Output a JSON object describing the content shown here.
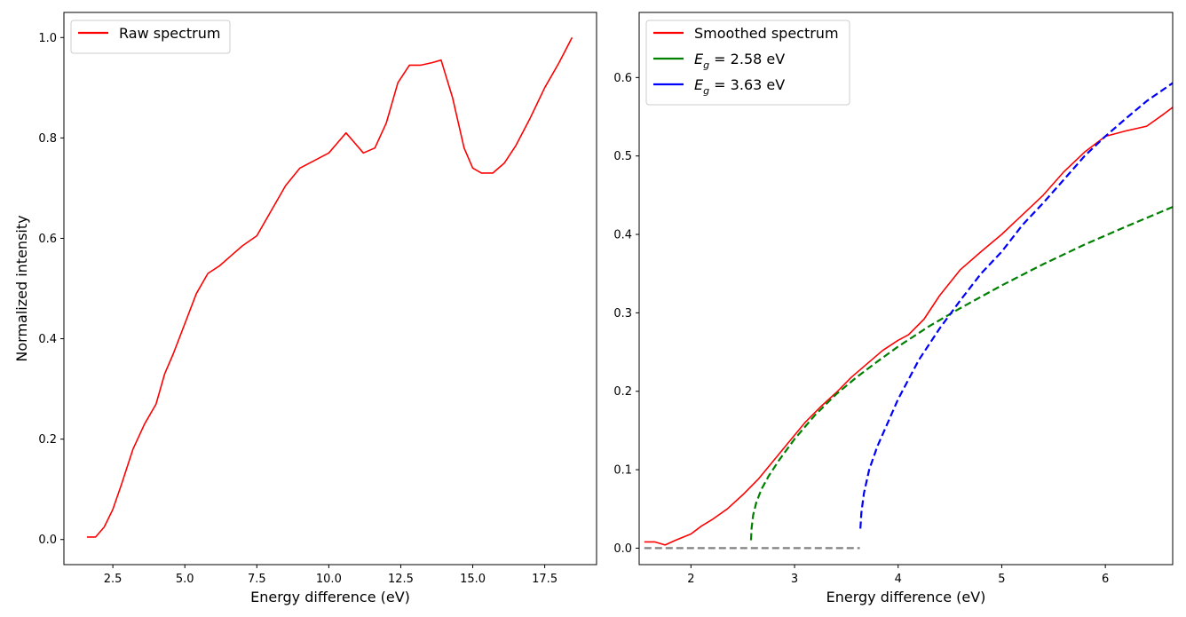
{
  "chart_data": [
    {
      "type": "line",
      "xlabel": "Energy difference (eV)",
      "ylabel": "Normalized intensity",
      "xlim": [
        0.8,
        19.3
      ],
      "ylim": [
        -0.05,
        1.05
      ],
      "xticks": [
        2.5,
        5.0,
        7.5,
        10.0,
        12.5,
        15.0,
        17.5
      ],
      "xtick_labels": [
        "2.5",
        "5.0",
        "7.5",
        "10.0",
        "12.5",
        "15.0",
        "17.5"
      ],
      "yticks": [
        0.0,
        0.2,
        0.4,
        0.6,
        0.8,
        1.0
      ],
      "ytick_labels": [
        "0.0",
        "0.2",
        "0.4",
        "0.6",
        "0.8",
        "1.0"
      ],
      "grid": false,
      "legend_position": "top-left",
      "series": [
        {
          "name": "Raw spectrum",
          "color": "#ff0000",
          "style": "solid",
          "in_legend": true,
          "x": [
            1.6,
            1.9,
            2.2,
            2.5,
            2.8,
            3.2,
            3.6,
            4.0,
            4.3,
            4.6,
            5.0,
            5.4,
            5.8,
            6.2,
            6.6,
            7.0,
            7.5,
            8.0,
            8.5,
            9.0,
            9.5,
            10.0,
            10.3,
            10.6,
            10.9,
            11.2,
            11.6,
            12.0,
            12.4,
            12.8,
            13.2,
            13.6,
            13.9,
            14.3,
            14.7,
            15.0,
            15.3,
            15.7,
            16.1,
            16.5,
            17.0,
            17.5,
            18.0,
            18.45
          ],
          "y": [
            0.005,
            0.005,
            0.025,
            0.06,
            0.11,
            0.18,
            0.23,
            0.27,
            0.33,
            0.37,
            0.43,
            0.49,
            0.53,
            0.545,
            0.565,
            0.585,
            0.605,
            0.655,
            0.705,
            0.74,
            0.755,
            0.77,
            0.79,
            0.81,
            0.79,
            0.77,
            0.78,
            0.83,
            0.91,
            0.945,
            0.945,
            0.95,
            0.955,
            0.88,
            0.78,
            0.74,
            0.73,
            0.73,
            0.75,
            0.785,
            0.84,
            0.9,
            0.95,
            1.0
          ]
        }
      ]
    },
    {
      "type": "line",
      "xlabel": "Energy difference (eV)",
      "ylabel": "",
      "xlim": [
        1.5,
        6.65
      ],
      "ylim": [
        -0.021,
        0.683
      ],
      "xticks": [
        2,
        3,
        4,
        5,
        6
      ],
      "xtick_labels": [
        "2",
        "3",
        "4",
        "5",
        "6"
      ],
      "yticks": [
        0.0,
        0.1,
        0.2,
        0.3,
        0.4,
        0.5,
        0.6
      ],
      "ytick_labels": [
        "0.0",
        "0.1",
        "0.2",
        "0.3",
        "0.4",
        "0.5",
        "0.6"
      ],
      "grid": false,
      "legend_position": "top-left",
      "series": [
        {
          "name": "Smoothed spectrum",
          "color": "#ff0000",
          "style": "solid",
          "in_legend": true,
          "x": [
            1.55,
            1.65,
            1.75,
            1.85,
            2.0,
            2.1,
            2.2,
            2.35,
            2.5,
            2.65,
            2.8,
            2.95,
            3.1,
            3.25,
            3.4,
            3.55,
            3.7,
            3.85,
            4.0,
            4.1,
            4.25,
            4.4,
            4.6,
            4.8,
            5.0,
            5.2,
            5.4,
            5.6,
            5.8,
            6.0,
            6.2,
            6.4,
            6.55,
            6.65
          ],
          "y": [
            0.008,
            0.008,
            0.004,
            0.01,
            0.018,
            0.028,
            0.036,
            0.05,
            0.068,
            0.088,
            0.112,
            0.136,
            0.16,
            0.18,
            0.198,
            0.218,
            0.235,
            0.252,
            0.265,
            0.272,
            0.292,
            0.322,
            0.355,
            0.378,
            0.4,
            0.425,
            0.45,
            0.48,
            0.505,
            0.525,
            0.532,
            0.538,
            0.552,
            0.562
          ]
        },
        {
          "name": "E_g = 2.58 eV",
          "color": "#008000",
          "style": "dashed",
          "in_legend": true,
          "legend_label": {
            "prefix": "E",
            "sub": "g",
            "suffix": " = 2.58 eV"
          },
          "x": [
            2.58,
            2.585,
            2.6,
            2.63,
            2.68,
            2.75,
            2.85,
            3.0,
            3.2,
            3.4,
            3.6,
            3.8,
            4.0,
            4.3,
            4.6,
            5.0,
            5.4,
            5.8,
            6.2,
            6.65
          ],
          "y": [
            0.01,
            0.025,
            0.042,
            0.058,
            0.075,
            0.092,
            0.112,
            0.139,
            0.17,
            0.196,
            0.218,
            0.238,
            0.257,
            0.283,
            0.306,
            0.335,
            0.362,
            0.387,
            0.41,
            0.435
          ]
        },
        {
          "name": "E_g = 3.63 eV",
          "color": "#0000ff",
          "style": "dashed",
          "in_legend": true,
          "legend_label": {
            "prefix": "E",
            "sub": "g",
            "suffix": " = 3.63 eV"
          },
          "x": [
            3.635,
            3.645,
            3.67,
            3.72,
            3.8,
            3.9,
            4.0,
            4.2,
            4.4,
            4.6,
            4.8,
            5.0,
            5.2,
            5.4,
            5.6,
            5.8,
            6.0,
            6.2,
            6.4,
            6.65
          ],
          "y": [
            0.025,
            0.045,
            0.07,
            0.1,
            0.13,
            0.16,
            0.19,
            0.24,
            0.28,
            0.316,
            0.35,
            0.378,
            0.412,
            0.44,
            0.47,
            0.5,
            0.525,
            0.548,
            0.57,
            0.593
          ]
        },
        {
          "name": "baseline",
          "color": "#808080",
          "style": "dashed",
          "in_legend": false,
          "x": [
            1.55,
            3.63
          ],
          "y": [
            0.0,
            0.0
          ]
        }
      ]
    }
  ]
}
